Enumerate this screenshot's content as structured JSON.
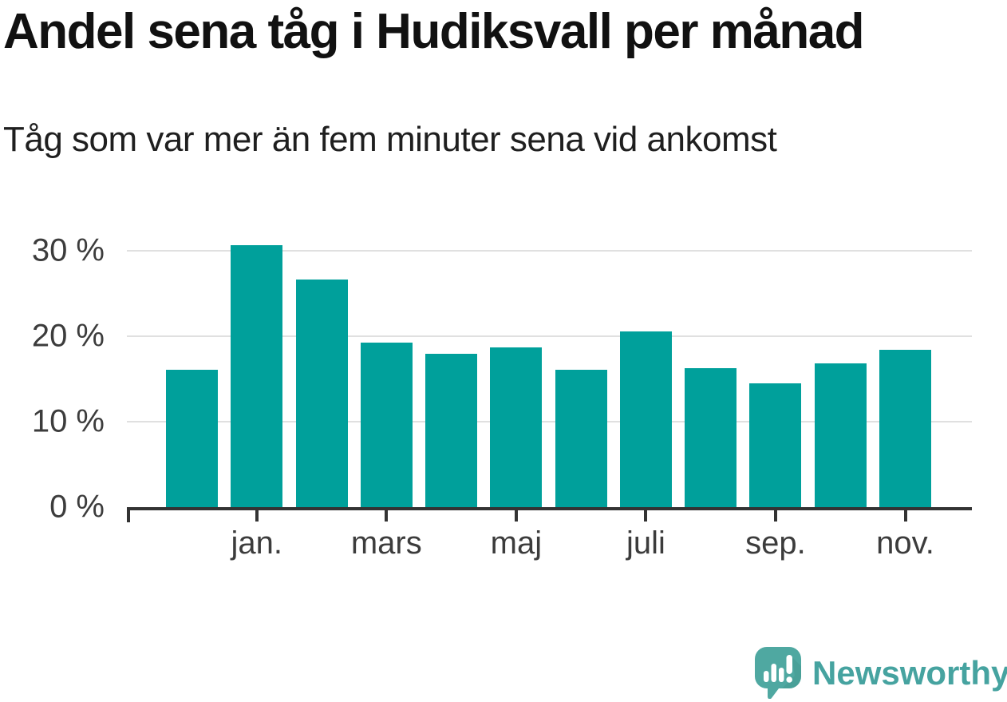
{
  "title": "Andel sena tåg i Hudiksvall per månad",
  "subtitle": "Tåg som var mer än fem minuter sena vid ankomst",
  "chart_data": {
    "type": "bar",
    "title": "Andel sena tåg i Hudiksvall per månad",
    "subtitle": "Tåg som var mer än fem minuter sena vid ankomst",
    "unit": "percent",
    "n_bars": 12,
    "values": [
      16.1,
      30.7,
      26.6,
      19.3,
      17.9,
      18.7,
      16.1,
      20.6,
      16.3,
      14.5,
      16.8,
      18.4
    ],
    "x_ticks": [
      {
        "bar_index": 1,
        "label": "jan."
      },
      {
        "bar_index": 3,
        "label": "mars"
      },
      {
        "bar_index": 5,
        "label": "maj"
      },
      {
        "bar_index": 7,
        "label": "juli"
      },
      {
        "bar_index": 9,
        "label": "sep."
      },
      {
        "bar_index": 11,
        "label": "nov."
      }
    ],
    "y_ticks": [
      {
        "value": 0,
        "label": "0 %"
      },
      {
        "value": 10,
        "label": "10 %"
      },
      {
        "value": 20,
        "label": "20 %"
      },
      {
        "value": 30,
        "label": "30 %"
      }
    ],
    "ylim": [
      0,
      33.2
    ],
    "grid": "horizontal",
    "legend": "none",
    "bar_color": "#00a09b"
  },
  "branding": {
    "logo_text": "Newsworthy"
  },
  "colors": {
    "bar": "#00a09b",
    "grid": "#e0e0e0",
    "axis": "#333333",
    "title_text": "#111111",
    "subtitle_text": "#1f1f1f",
    "tick_text": "#3c3c3c",
    "logo_bubble": "#4fa8a1",
    "logo_bubble_shade": "#42968f",
    "logo_glyph": "#ffffff",
    "logo_text": "#46a3a0",
    "background": "#ffffff"
  }
}
